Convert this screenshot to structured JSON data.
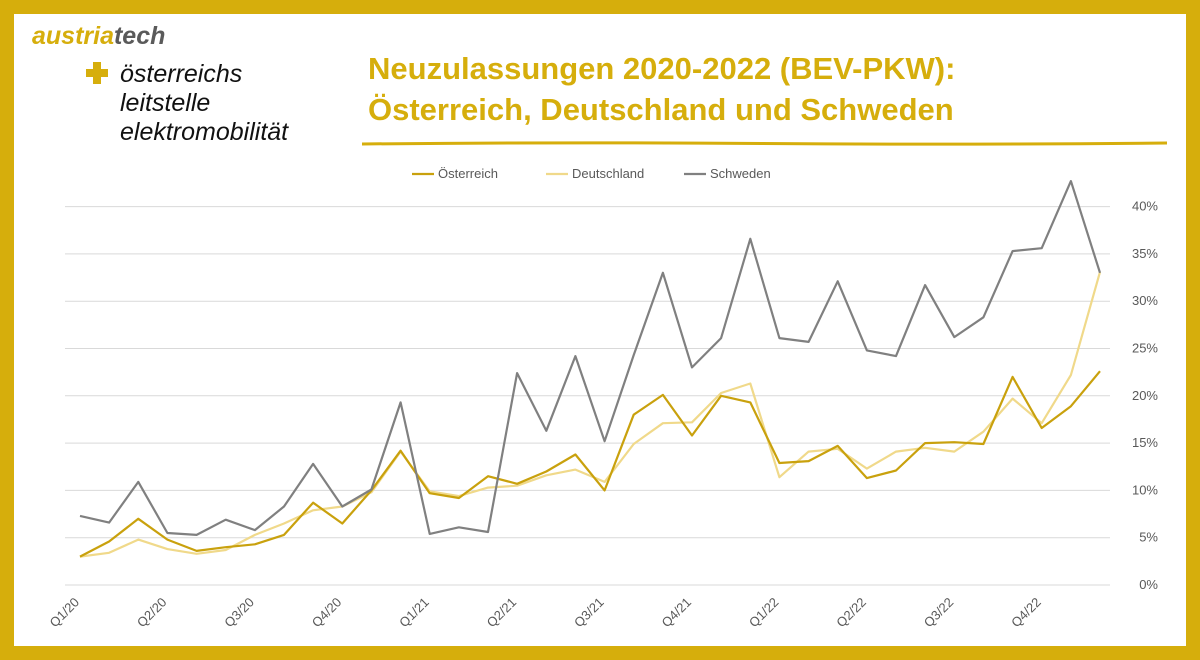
{
  "logo": {
    "brand_part1": "austria",
    "brand_part2": "tech",
    "line1": "österreichs",
    "line2": "leitstelle",
    "line3": "elektromobilität",
    "icon": "plus-icon"
  },
  "colors": {
    "frame": "#d6ae0c",
    "title": "#d6ae0c",
    "austria": "#c9a10d",
    "germany": "#f0d98a",
    "sweden": "#808080",
    "grid": "#d9d9d9"
  },
  "chart_data": {
    "type": "line",
    "title_line1": "Neuzulassungen 2020-2022 (BEV-PKW):",
    "title_line2": "Österreich, Deutschland und Schweden",
    "legend_placement": "top",
    "grid": true,
    "ylim": [
      0,
      0.45
    ],
    "y_ticks": [
      "0%",
      "5%",
      "10%",
      "15%",
      "20%",
      "25%",
      "30%",
      "35%",
      "40%"
    ],
    "x_tick_labels": [
      "Q1/20",
      "Q2/20",
      "Q3/20",
      "Q4/20",
      "Q1/21",
      "Q2/21",
      "Q3/21",
      "Q4/21",
      "Q1/22",
      "Q2/22",
      "Q3/22",
      "Q4/22"
    ],
    "series": [
      {
        "name": "Österreich",
        "color": "#c9a10d",
        "values": [
          0.03,
          0.046,
          0.07,
          0.048,
          0.036,
          0.04,
          0.043,
          0.053,
          0.087,
          0.065,
          0.1,
          0.142,
          0.097,
          0.092,
          0.115,
          0.107,
          0.12,
          0.138,
          0.1,
          0.18,
          0.201,
          0.158,
          0.2,
          0.193,
          0.129,
          0.131,
          0.147,
          0.113,
          0.121,
          0.15,
          0.151,
          0.149,
          0.22,
          0.166,
          0.189,
          0.226
        ]
      },
      {
        "name": "Deutschland",
        "color": "#f0d98a",
        "values": [
          0.03,
          0.034,
          0.048,
          0.038,
          0.033,
          0.037,
          0.053,
          0.065,
          0.079,
          0.083,
          0.098,
          0.141,
          0.099,
          0.094,
          0.103,
          0.105,
          0.116,
          0.122,
          0.109,
          0.149,
          0.171,
          0.172,
          0.203,
          0.213,
          0.114,
          0.141,
          0.144,
          0.123,
          0.141,
          0.145,
          0.141,
          0.162,
          0.197,
          0.171,
          0.222,
          0.331
        ]
      },
      {
        "name": "Schweden",
        "color": "#808080",
        "values": [
          0.073,
          0.066,
          0.109,
          0.055,
          0.053,
          0.069,
          0.058,
          0.083,
          0.128,
          0.083,
          0.101,
          0.193,
          0.054,
          0.061,
          0.056,
          0.224,
          0.163,
          0.242,
          0.152,
          0.243,
          0.33,
          0.23,
          0.261,
          0.366,
          0.261,
          0.257,
          0.321,
          0.248,
          0.242,
          0.317,
          0.262,
          0.283,
          0.353,
          0.356,
          0.427,
          0.33
        ]
      }
    ]
  }
}
